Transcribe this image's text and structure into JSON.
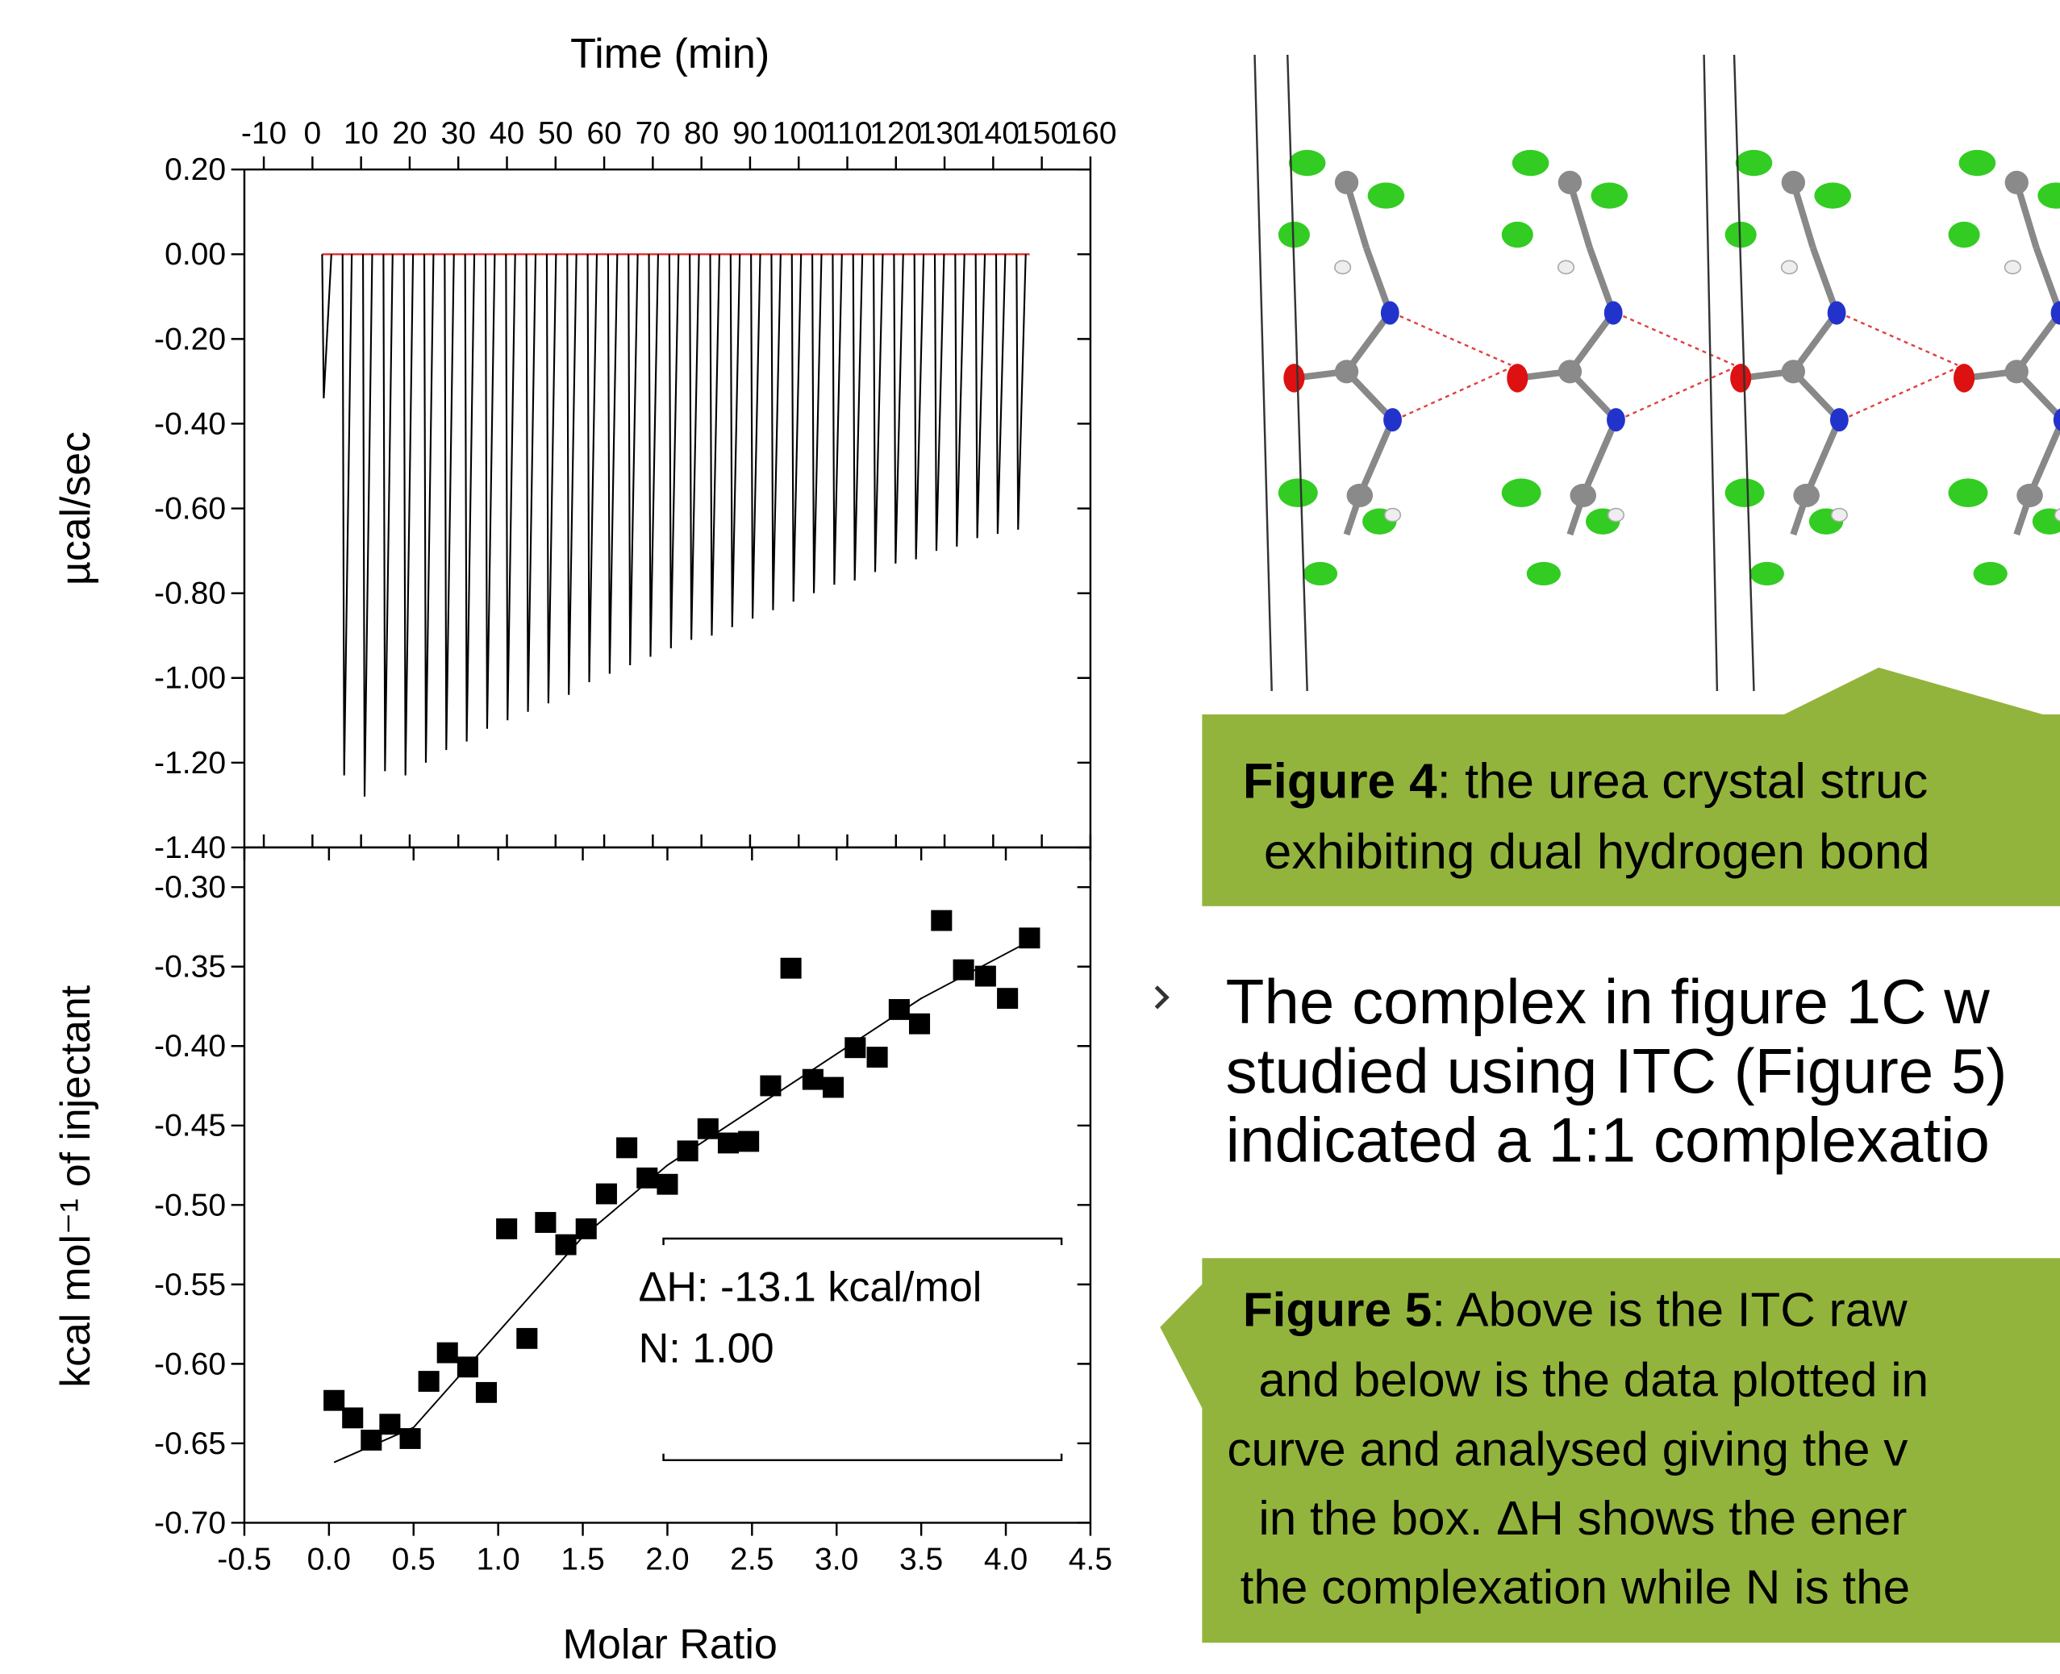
{
  "chart_data": [
    {
      "type": "spike",
      "xlabel": "Time (min)",
      "ylabel": "µcal/sec",
      "x": [
        2,
        6.2,
        10.4,
        14.6,
        18.8,
        23,
        27.2,
        31.4,
        35.6,
        39.8,
        44,
        48.2,
        52.4,
        56.6,
        60.8,
        65,
        69.2,
        73.4,
        77.6,
        81.8,
        86,
        90.2,
        94.4,
        98.6,
        102.8,
        107,
        111.2,
        115.4,
        119.6,
        123.8,
        128,
        132.2,
        136.4,
        140.6,
        144.8
      ],
      "values": [
        -0.34,
        -1.23,
        -1.28,
        -1.22,
        -1.23,
        -1.2,
        -1.17,
        -1.15,
        -1.12,
        -1.1,
        -1.08,
        -1.06,
        -1.04,
        -1.01,
        -0.99,
        -0.97,
        -0.95,
        -0.93,
        -0.91,
        -0.9,
        -0.88,
        -0.86,
        -0.84,
        -0.82,
        -0.8,
        -0.78,
        -0.77,
        -0.75,
        -0.73,
        -0.72,
        -0.7,
        -0.69,
        -0.67,
        -0.66,
        -0.65
      ],
      "color": "#000000",
      "baseline_color": "#e03030",
      "xlim": [
        -14,
        160
      ],
      "xticks": [
        -10,
        0,
        10,
        20,
        30,
        40,
        50,
        60,
        70,
        80,
        90,
        100,
        110,
        120,
        130,
        140,
        150,
        160
      ],
      "ylim": [
        -1.4,
        0.2
      ],
      "yticks": [
        {
          "value": -1.4,
          "label": "-1.40"
        },
        {
          "value": -1.2,
          "label": "-1.20"
        },
        {
          "value": -1,
          "label": "-1.00"
        },
        {
          "value": -0.8,
          "label": "-0.80"
        },
        {
          "value": -0.6,
          "label": "-0.60"
        },
        {
          "value": -0.4,
          "label": "-0.40"
        },
        {
          "value": -0.2,
          "label": "-0.20"
        },
        {
          "value": 0,
          "label": "0.00"
        },
        {
          "value": 0.2,
          "label": "0.20"
        }
      ]
    },
    {
      "type": "scatter",
      "xlabel": "Molar Ratio",
      "ylabel": "kcal mol⁻¹ of injectant",
      "annotations": [
        "ΔH: -13.1 kcal/mol",
        "N: 1.00"
      ],
      "series": [
        {
          "x": [
            0.03,
            0.14,
            0.25,
            0.36,
            0.48,
            0.59,
            0.7,
            0.82,
            0.93,
            1.05,
            1.17,
            1.28,
            1.4,
            1.52,
            1.64,
            1.76,
            1.88,
            2.0,
            2.12,
            2.24,
            2.36,
            2.48,
            2.61,
            2.73,
            2.86,
            2.98,
            3.11,
            3.24,
            3.37,
            3.49,
            3.62,
            3.75,
            3.88,
            4.01,
            4.14
          ],
          "values": [
            -0.623,
            -0.634,
            -0.648,
            -0.638,
            -0.647,
            -0.611,
            -0.593,
            -0.602,
            -0.618,
            -0.515,
            -0.584,
            -0.511,
            -0.525,
            -0.515,
            -0.493,
            -0.464,
            -0.483,
            -0.487,
            -0.466,
            -0.452,
            -0.461,
            -0.46,
            -0.425,
            -0.351,
            -0.421,
            -0.426,
            -0.401,
            -0.407,
            -0.377,
            -0.386,
            -0.321,
            -0.352,
            -0.356,
            -0.37,
            -0.332
          ],
          "color": "#000000",
          "marker": "square"
        },
        {
          "x": [
            0.03,
            0.5,
            1.0,
            1.5,
            2.0,
            2.5,
            3.0,
            3.5,
            4.14
          ],
          "values": [
            -0.662,
            -0.64,
            -0.58,
            -0.52,
            -0.475,
            -0.44,
            -0.405,
            -0.37,
            -0.334
          ],
          "color": "#000000",
          "line": true
        }
      ],
      "xlim": [
        -0.5,
        4.5
      ],
      "xticks": [
        -0.5,
        {
          "value": 0,
          "label": "0.0"
        },
        0.5,
        {
          "value": 1,
          "label": "1.0"
        },
        1.5,
        {
          "value": 2,
          "label": "2.0"
        },
        2.5,
        {
          "value": 3,
          "label": "3.0"
        },
        3.5,
        {
          "value": 4,
          "label": "4.0"
        },
        4.5
      ],
      "ylim": [
        -0.7,
        -0.275
      ],
      "yticks": [
        {
          "value": -0.7,
          "label": "-0.70"
        },
        -0.65,
        {
          "value": -0.6,
          "label": "-0.60"
        },
        -0.55,
        {
          "value": -0.5,
          "label": "-0.50"
        },
        -0.45,
        {
          "value": -0.4,
          "label": "-0.40"
        },
        -0.35,
        {
          "value": -0.3,
          "label": "-0.30"
        }
      ]
    }
  ],
  "figure4_caption": {
    "label": "Figure 4",
    "lines": [
      ": the urea crystal struc",
      "exhibiting dual hydrogen bond"
    ]
  },
  "bullet": [
    "The complex in figure 1C w",
    "studied using ITC (Figure 5)",
    "indicated a 1:1 complexatio"
  ],
  "figure5_caption": {
    "label": "Figure 5",
    "lines": [
      ": Above is the ITC raw",
      "and below is the data plotted in",
      "curve and analysed giving the v",
      "in the box. ΔH shows the ener",
      "the complexation while N is the"
    ]
  }
}
